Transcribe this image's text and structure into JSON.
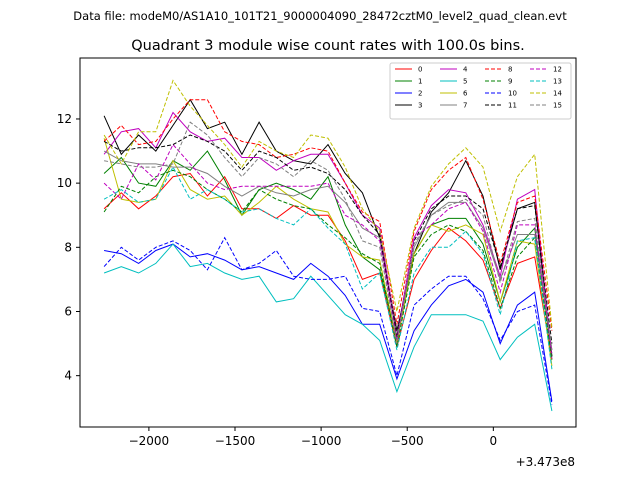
{
  "chart_data": {
    "type": "line",
    "suptitle": "Data file: modeM0/AS1A10_101T21_9000004090_28472cztM0_level2_quad_clean.evt",
    "title": "Quadrant 3 module wise count rates with 100.0s bins.",
    "xlabel": "",
    "ylabel": "",
    "offset_label": "+3.473e8",
    "xlim": [
      -2400,
      480
    ],
    "ylim": [
      2.4,
      13.9
    ],
    "xticks": [
      -2000,
      -1500,
      -1000,
      -500,
      0
    ],
    "xtick_labels": [
      "−2000",
      "−1500",
      "−1000",
      "−500",
      "0"
    ],
    "yticks": [
      4,
      6,
      8,
      10,
      12
    ],
    "ytick_labels": [
      "4",
      "6",
      "8",
      "10",
      "12"
    ],
    "legend_position": "top-right",
    "x": [
      -2260,
      -2160,
      -2060,
      -1960,
      -1860,
      -1760,
      -1660,
      -1560,
      -1460,
      -1360,
      -1260,
      -1160,
      -1060,
      -960,
      -860,
      -760,
      -660,
      -560,
      -460,
      -360,
      -260,
      -160,
      -60,
      40,
      140,
      240,
      340
    ],
    "series": [
      {
        "name": "0",
        "color": "#ff0000",
        "dash": false,
        "values": [
          9.2,
          9.7,
          9.2,
          9.6,
          10.2,
          10.3,
          9.6,
          10.2,
          9.2,
          9.2,
          8.9,
          9.3,
          9.0,
          9.0,
          8.2,
          7.0,
          7.2,
          4.9,
          7.0,
          7.9,
          8.6,
          8.2,
          7.6,
          6.1,
          7.5,
          7.7,
          4.5
        ]
      },
      {
        "name": "1",
        "color": "#008000",
        "dash": false,
        "values": [
          10.3,
          10.8,
          10.0,
          9.9,
          10.7,
          10.4,
          11.0,
          10.1,
          9.0,
          9.8,
          10.0,
          9.8,
          9.5,
          10.2,
          8.7,
          7.7,
          7.3,
          5.1,
          7.8,
          8.7,
          8.9,
          8.9,
          8.1,
          6.3,
          8.0,
          8.6,
          4.6
        ]
      },
      {
        "name": "2",
        "color": "#0000ff",
        "dash": false,
        "values": [
          7.9,
          7.8,
          7.5,
          7.9,
          8.1,
          7.7,
          7.8,
          7.6,
          7.3,
          7.4,
          7.2,
          7.0,
          7.5,
          7.1,
          6.5,
          5.6,
          5.6,
          3.9,
          5.4,
          6.2,
          6.8,
          7.0,
          6.6,
          5.0,
          6.2,
          6.6,
          3.2
        ]
      },
      {
        "name": "3",
        "color": "#000000",
        "dash": false,
        "values": [
          12.1,
          10.9,
          11.5,
          11.0,
          11.8,
          12.6,
          11.7,
          11.9,
          10.9,
          11.9,
          11.0,
          10.7,
          10.6,
          11.2,
          10.3,
          9.7,
          8.3,
          5.4,
          7.8,
          9.1,
          9.7,
          10.7,
          9.6,
          7.3,
          9.2,
          9.4,
          4.6
        ]
      },
      {
        "name": "4",
        "color": "#bf00bf",
        "dash": false,
        "values": [
          10.9,
          11.6,
          11.7,
          11.1,
          12.2,
          11.6,
          11.3,
          11.4,
          10.8,
          10.8,
          10.4,
          10.7,
          10.9,
          10.9,
          10.0,
          9.0,
          8.6,
          5.2,
          8.3,
          9.3,
          9.8,
          9.7,
          8.7,
          7.1,
          9.5,
          9.8,
          4.5
        ]
      },
      {
        "name": "5",
        "color": "#00bfbf",
        "dash": false,
        "values": [
          7.2,
          7.4,
          7.2,
          7.5,
          8.1,
          7.4,
          7.5,
          7.2,
          7.0,
          7.1,
          6.3,
          6.4,
          7.1,
          6.5,
          5.9,
          5.6,
          5.1,
          3.5,
          4.9,
          5.9,
          5.9,
          5.9,
          5.7,
          4.5,
          5.2,
          5.6,
          2.9
        ]
      },
      {
        "name": "6",
        "color": "#bfbf00",
        "dash": false,
        "values": [
          11.4,
          9.5,
          9.4,
          9.5,
          10.7,
          9.8,
          9.5,
          9.6,
          9.0,
          9.4,
          9.9,
          9.5,
          9.2,
          9.1,
          8.1,
          7.7,
          7.6,
          5.0,
          7.8,
          8.7,
          8.5,
          8.7,
          8.4,
          6.3,
          8.2,
          8.1,
          4.3
        ]
      },
      {
        "name": "7",
        "color": "#808080",
        "dash": false,
        "values": [
          11.0,
          10.7,
          10.6,
          10.6,
          10.5,
          10.5,
          10.3,
          9.9,
          9.6,
          9.9,
          9.7,
          9.6,
          9.8,
          9.9,
          9.4,
          8.6,
          8.3,
          5.2,
          8.0,
          9.0,
          9.4,
          9.4,
          8.6,
          7.0,
          8.4,
          8.4,
          4.8
        ]
      },
      {
        "name": "8",
        "color": "#ff0000",
        "dash": true,
        "values": [
          11.3,
          11.8,
          11.2,
          11.3,
          12.0,
          12.6,
          12.6,
          11.6,
          11.3,
          11.2,
          10.8,
          10.9,
          11.1,
          11.0,
          10.0,
          9.1,
          8.8,
          5.6,
          8.5,
          9.8,
          10.4,
          10.8,
          9.5,
          7.5,
          9.4,
          9.6,
          5.4
        ]
      },
      {
        "name": "9",
        "color": "#008000",
        "dash": true,
        "values": [
          9.1,
          9.9,
          9.7,
          10.2,
          10.4,
          10.2,
          9.8,
          9.5,
          9.1,
          9.8,
          9.5,
          9.3,
          9.2,
          8.7,
          8.3,
          7.8,
          7.5,
          4.9,
          7.7,
          8.4,
          8.7,
          8.5,
          7.9,
          6.1,
          7.7,
          8.3,
          4.5
        ]
      },
      {
        "name": "10",
        "color": "#0000ff",
        "dash": true,
        "values": [
          7.4,
          8.0,
          7.6,
          8.0,
          8.2,
          7.9,
          7.3,
          8.3,
          7.3,
          7.5,
          7.9,
          7.1,
          7.0,
          7.0,
          7.1,
          6.1,
          6.0,
          4.0,
          6.2,
          6.7,
          7.1,
          7.1,
          6.4,
          5.1,
          6.0,
          6.2,
          3.1
        ]
      },
      {
        "name": "11",
        "color": "#000000",
        "dash": true,
        "values": [
          11.3,
          11.0,
          11.1,
          11.1,
          11.2,
          11.5,
          11.3,
          11.0,
          10.4,
          11.0,
          10.8,
          10.4,
          10.5,
          10.3,
          9.8,
          9.0,
          8.4,
          5.2,
          8.2,
          9.2,
          9.6,
          9.6,
          9.2,
          7.4,
          9.2,
          9.3,
          5.0
        ]
      },
      {
        "name": "12",
        "color": "#bf00bf",
        "dash": true,
        "values": [
          10.0,
          9.5,
          10.6,
          10.1,
          11.2,
          10.6,
          10.0,
          9.8,
          9.9,
          9.9,
          9.9,
          9.9,
          9.9,
          10.0,
          9.0,
          8.7,
          8.2,
          5.1,
          8.3,
          8.7,
          9.2,
          9.4,
          8.5,
          6.6,
          8.7,
          8.7,
          4.7
        ]
      },
      {
        "name": "13",
        "color": "#00bfbf",
        "dash": true,
        "values": [
          9.5,
          9.8,
          9.4,
          9.5,
          10.5,
          9.5,
          9.8,
          9.5,
          9.1,
          9.2,
          8.9,
          8.7,
          9.2,
          8.6,
          8.1,
          6.7,
          7.2,
          4.8,
          7.2,
          8.0,
          8.0,
          8.5,
          7.8,
          5.9,
          8.2,
          8.3,
          4.2
        ]
      },
      {
        "name": "14",
        "color": "#bfbf00",
        "dash": true,
        "values": [
          11.5,
          10.6,
          11.6,
          11.6,
          13.2,
          12.4,
          11.8,
          11.2,
          10.5,
          11.3,
          11.0,
          10.8,
          11.5,
          11.4,
          10.5,
          9.2,
          8.5,
          6.0,
          8.6,
          9.9,
          10.6,
          11.1,
          10.5,
          8.5,
          10.2,
          10.9,
          5.5
        ]
      },
      {
        "name": "15",
        "color": "#808080",
        "dash": true,
        "values": [
          10.7,
          10.6,
          10.5,
          10.5,
          10.6,
          11.9,
          11.5,
          10.8,
          10.2,
          10.8,
          10.6,
          10.2,
          10.7,
          10.4,
          9.5,
          8.2,
          8.0,
          5.0,
          8.1,
          9.0,
          9.3,
          9.5,
          9.0,
          6.9,
          8.8,
          8.9,
          4.8
        ]
      }
    ]
  }
}
